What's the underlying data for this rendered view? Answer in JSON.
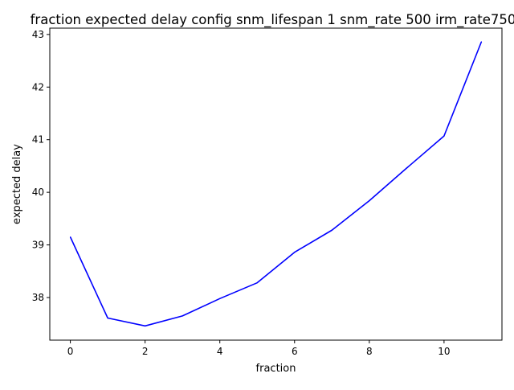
{
  "chart_data": {
    "type": "line",
    "title": "fraction expected delay config snm_lifespan 1 snm_rate 500 irm_rate750",
    "xlabel": "fraction",
    "ylabel": "expected delay",
    "xlim": [
      -0.55,
      11.55
    ],
    "ylim": [
      37.19,
      43.12
    ],
    "xticks": [
      0,
      2,
      4,
      6,
      8,
      10
    ],
    "yticks": [
      38,
      39,
      40,
      41,
      42,
      43
    ],
    "grid": false,
    "legend": null,
    "series": [
      {
        "color": "#0000ff",
        "x": [
          0,
          1,
          2,
          3,
          4,
          5,
          6,
          7,
          8,
          9,
          10,
          11
        ],
        "y": [
          39.15,
          37.61,
          37.46,
          37.65,
          37.98,
          38.28,
          38.86,
          39.28,
          39.84,
          40.46,
          41.07,
          42.86
        ]
      }
    ]
  }
}
